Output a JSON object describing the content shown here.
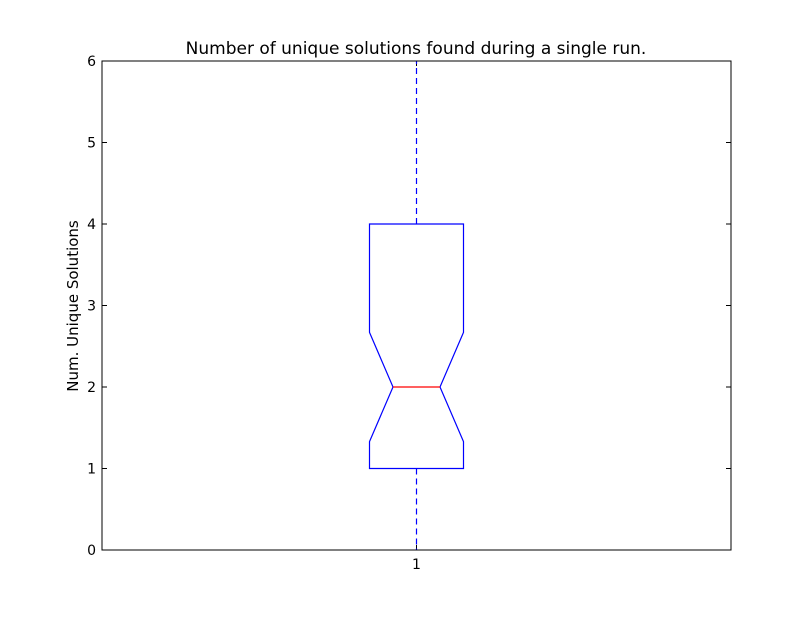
{
  "chart_data": {
    "type": "box",
    "title": "Number of unique solutions found during a single run.",
    "xlabel": "",
    "ylabel": "Num. Unique Solutions",
    "ylim": [
      0,
      6
    ],
    "yticks": [
      0,
      1,
      2,
      3,
      4,
      5,
      6
    ],
    "categories": [
      "1"
    ],
    "notched": true,
    "series": [
      {
        "whisker_low": 0,
        "q1": 1,
        "median": 2,
        "q3": 4,
        "whisker_high": 6,
        "notch_low": 1.33,
        "notch_high": 2.67
      }
    ],
    "colors": {
      "box": "#0000ff",
      "median": "#ff0000",
      "whisker": "#0000ff",
      "axes": "#000000"
    }
  }
}
